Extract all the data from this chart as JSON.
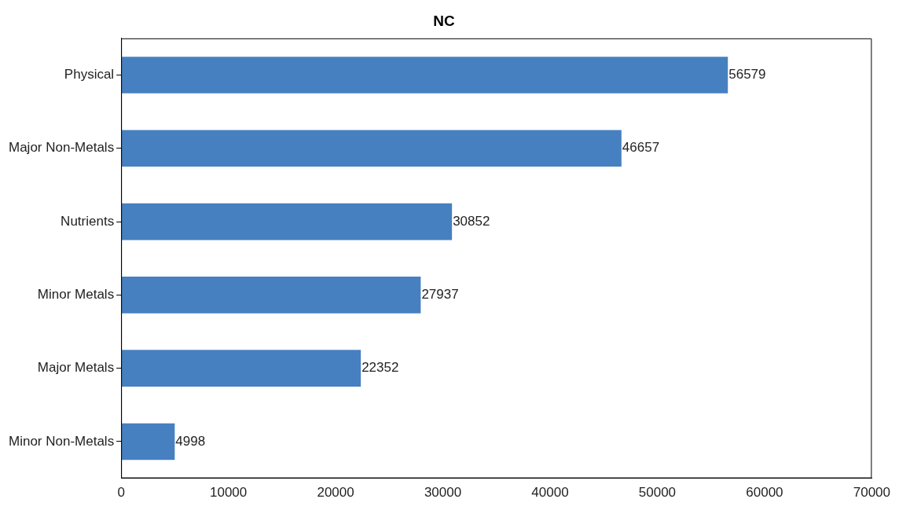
{
  "chart_data": {
    "type": "bar",
    "title": "NC",
    "orientation": "horizontal",
    "categories": [
      "Physical",
      "Major Non-Metals",
      "Nutrients",
      "Minor Metals",
      "Major Metals",
      "Minor Non-Metals"
    ],
    "values": [
      56579,
      46657,
      30852,
      27937,
      22352,
      4998
    ],
    "color": "#4680c0",
    "xlim": [
      0,
      70000
    ],
    "xticks": [
      0,
      10000,
      20000,
      30000,
      40000,
      50000,
      60000,
      70000
    ],
    "data_labels": true,
    "grid": false,
    "legend": false
  }
}
